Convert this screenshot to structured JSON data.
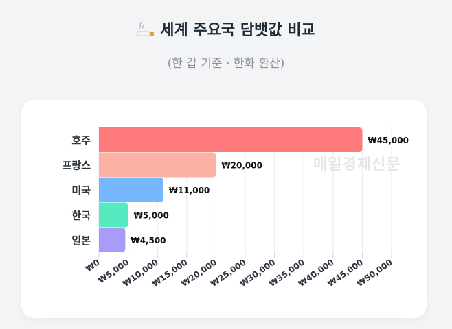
{
  "header": {
    "icon": "cigarette-icon",
    "title": "세계 주요국 담뱃값 비교",
    "subtitle": "(한 갑 기준 · 한화 환산)"
  },
  "watermark": "매일경제신문",
  "colors": {
    "background": "#f3f4f6",
    "card": "#ffffff",
    "grid": "#e8eaee",
    "bars": [
      "#ff7a7a",
      "#fbb2a3",
      "#74b7fd",
      "#56eac0",
      "#a79cf8"
    ]
  },
  "chart_data": {
    "type": "bar",
    "orientation": "horizontal",
    "categories": [
      "호주",
      "프랑스",
      "미국",
      "한국",
      "일본"
    ],
    "values": [
      45000,
      20000,
      11000,
      5000,
      4500
    ],
    "value_labels": [
      "₩45,000",
      "₩20,000",
      "₩11,000",
      "₩5,000",
      "₩4,500"
    ],
    "x_ticks": [
      0,
      5000,
      10000,
      15000,
      20000,
      25000,
      30000,
      35000,
      40000,
      45000,
      50000
    ],
    "x_tick_labels": [
      "₩0",
      "₩5,000",
      "₩10,000",
      "₩15,000",
      "₩20,000",
      "₩25,000",
      "₩30,000",
      "₩35,000",
      "₩40,000",
      "₩45,000",
      "₩50,000"
    ],
    "xlim": [
      0,
      50000
    ],
    "grid": true,
    "title": "세계 주요국 담뱃값 비교",
    "subtitle": "(한 갑 기준 · 한화 환산)",
    "xlabel": "",
    "ylabel": ""
  }
}
